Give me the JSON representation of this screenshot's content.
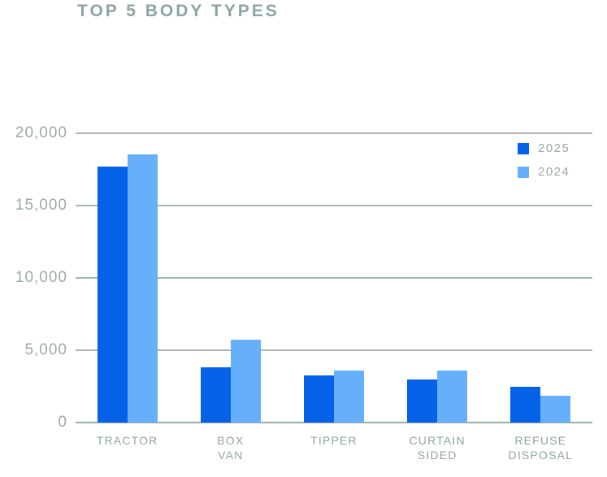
{
  "title": "TOP 5 BODY TYPES",
  "colors": {
    "series_2025": "#0561e8",
    "series_2024": "#66affa",
    "title_text": "#8da3a4",
    "axis_text": "#9aabac",
    "category_text": "#8fa3a5",
    "gridline": "#a9b6b4",
    "axis_line": "#9dabab",
    "background": "#ffffff"
  },
  "legend": {
    "items": [
      {
        "label": "2025",
        "color": "#0561e8"
      },
      {
        "label": "2024",
        "color": "#66affa"
      }
    ]
  },
  "chart_data": {
    "type": "bar",
    "title": "TOP 5 BODY TYPES",
    "categories": [
      "TRACTOR",
      "BOX VAN",
      "TIPPER",
      "CURTAIN\nSIDED",
      "REFUSE\nDISPOSAL"
    ],
    "series": [
      {
        "name": "2025",
        "color": "#0561e8",
        "values": [
          17700,
          3800,
          3250,
          3000,
          2500
        ]
      },
      {
        "name": "2024",
        "color": "#66affa",
        "values": [
          18550,
          5750,
          3600,
          3600,
          1850
        ]
      }
    ],
    "xlabel": "",
    "ylabel": "",
    "ylim": [
      0,
      20000
    ],
    "yticks": [
      {
        "label": "20,000",
        "value": 20000
      },
      {
        "label": "15,000",
        "value": 15000
      },
      {
        "label": "10,000",
        "value": 10000
      },
      {
        "label": "5,000",
        "value": 5000
      },
      {
        "label": "0",
        "value": 0
      }
    ],
    "grid": "horizontal",
    "legend_position": "top-right"
  }
}
